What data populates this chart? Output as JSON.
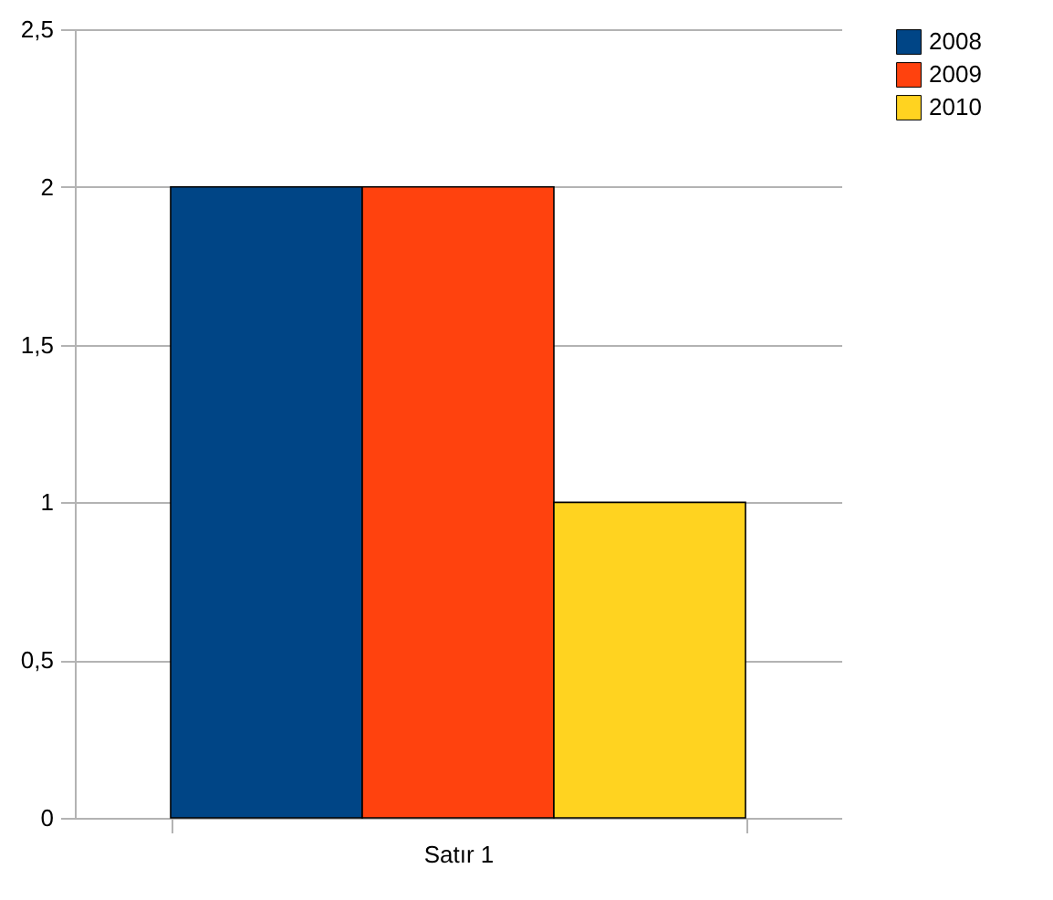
{
  "chart_data": {
    "type": "bar",
    "categories": [
      "Satır 1"
    ],
    "series": [
      {
        "name": "2008",
        "color": "#004586",
        "values": [
          2
        ]
      },
      {
        "name": "2009",
        "color": "#ff420e",
        "values": [
          2
        ]
      },
      {
        "name": "2010",
        "color": "#ffd320",
        "values": [
          1
        ]
      }
    ],
    "ylim": [
      0,
      2.5
    ],
    "yticks": [
      0,
      {
        "value": 0.5,
        "label": "0,5"
      },
      1,
      {
        "value": 1.5,
        "label": "1,5"
      },
      2,
      {
        "value": 2.5,
        "label": "2,5"
      }
    ],
    "grid": "y",
    "legend": "right"
  }
}
